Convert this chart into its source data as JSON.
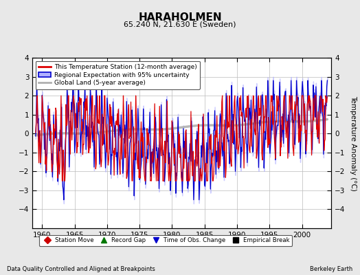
{
  "title": "HARAHOLMEN",
  "subtitle": "65.240 N, 21.630 E (Sweden)",
  "ylabel": "Temperature Anomaly (°C)",
  "footer_left": "Data Quality Controlled and Aligned at Breakpoints",
  "footer_right": "Berkeley Earth",
  "xlim": [
    1958.5,
    2004.5
  ],
  "ylim": [
    -5,
    4
  ],
  "yticks": [
    -4,
    -3,
    -2,
    -1,
    0,
    1,
    2,
    3,
    4
  ],
  "xticks": [
    1960,
    1965,
    1970,
    1975,
    1980,
    1985,
    1990,
    1995,
    2000
  ],
  "bg_color": "#e8e8e8",
  "plot_bg_color": "#ffffff",
  "grid_color": "#bbbbbb",
  "red_line_color": "#dd0000",
  "blue_line_color": "#0000cc",
  "uncertainty_color": "#b0b0ff",
  "global_line_color": "#b0b0b0",
  "legend_box_color": "#ffffff",
  "bottom_legend": [
    {
      "label": "Station Move",
      "color": "#cc0000",
      "marker": "D"
    },
    {
      "label": "Record Gap",
      "color": "#007700",
      "marker": "^"
    },
    {
      "label": "Time of Obs. Change",
      "color": "#0000cc",
      "marker": "v"
    },
    {
      "label": "Empirical Break",
      "color": "#000000",
      "marker": "s"
    }
  ]
}
